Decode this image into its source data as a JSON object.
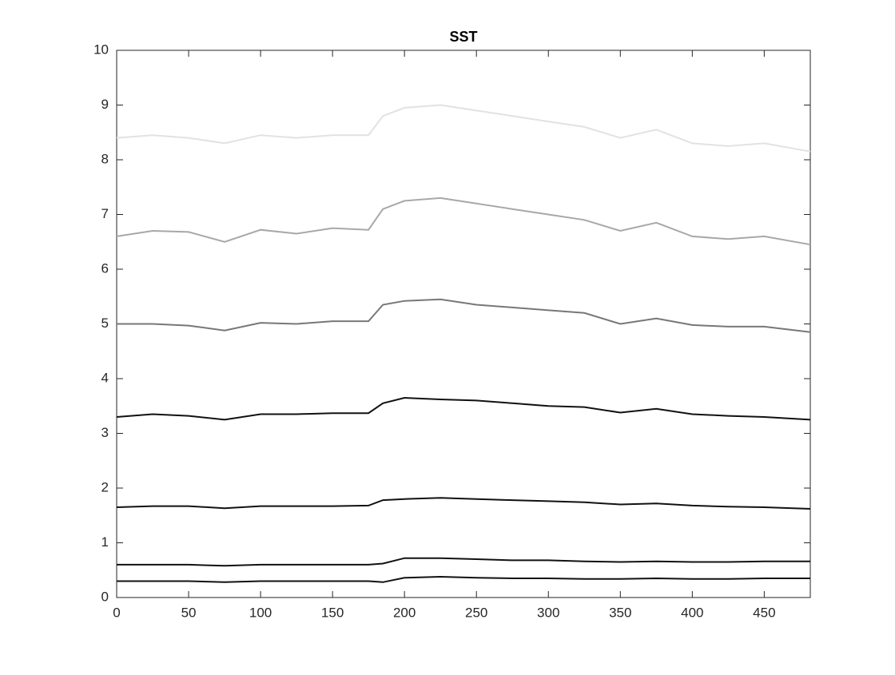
{
  "chart_data": {
    "type": "line",
    "title": "SST",
    "x": [
      0,
      25,
      50,
      75,
      100,
      125,
      150,
      175,
      185,
      200,
      225,
      250,
      275,
      300,
      325,
      350,
      375,
      400,
      425,
      450,
      482
    ],
    "series": [
      {
        "color": "#e2e2e2",
        "values": [
          8.4,
          8.45,
          8.4,
          8.3,
          8.45,
          8.4,
          8.45,
          8.45,
          8.8,
          8.95,
          9.0,
          8.9,
          8.8,
          8.7,
          8.6,
          8.4,
          8.55,
          8.3,
          8.25,
          8.3,
          8.15
        ]
      },
      {
        "color": "#a8a8a8",
        "values": [
          6.6,
          6.7,
          6.68,
          6.5,
          6.72,
          6.65,
          6.75,
          6.72,
          7.1,
          7.25,
          7.3,
          7.2,
          7.1,
          7.0,
          6.9,
          6.7,
          6.85,
          6.6,
          6.55,
          6.6,
          6.45
        ]
      },
      {
        "color": "#777777",
        "values": [
          5.0,
          5.0,
          4.97,
          4.88,
          5.02,
          5.0,
          5.05,
          5.05,
          5.35,
          5.42,
          5.45,
          5.35,
          5.3,
          5.25,
          5.2,
          5.0,
          5.1,
          4.98,
          4.95,
          4.95,
          4.85
        ]
      },
      {
        "color": "#111111",
        "values": [
          3.3,
          3.35,
          3.32,
          3.25,
          3.35,
          3.35,
          3.37,
          3.37,
          3.55,
          3.65,
          3.62,
          3.6,
          3.55,
          3.5,
          3.48,
          3.38,
          3.45,
          3.35,
          3.32,
          3.3,
          3.25
        ]
      },
      {
        "color": "#111111",
        "values": [
          1.65,
          1.67,
          1.67,
          1.63,
          1.67,
          1.67,
          1.67,
          1.68,
          1.78,
          1.8,
          1.82,
          1.8,
          1.78,
          1.76,
          1.74,
          1.7,
          1.72,
          1.68,
          1.66,
          1.65,
          1.62
        ]
      },
      {
        "color": "#111111",
        "values": [
          0.6,
          0.6,
          0.6,
          0.58,
          0.6,
          0.6,
          0.6,
          0.6,
          0.62,
          0.72,
          0.72,
          0.7,
          0.68,
          0.68,
          0.66,
          0.65,
          0.66,
          0.65,
          0.65,
          0.66,
          0.66
        ]
      },
      {
        "color": "#111111",
        "values": [
          0.3,
          0.3,
          0.3,
          0.28,
          0.3,
          0.3,
          0.3,
          0.3,
          0.28,
          0.36,
          0.38,
          0.36,
          0.35,
          0.35,
          0.34,
          0.34,
          0.35,
          0.34,
          0.34,
          0.35,
          0.35
        ]
      }
    ],
    "xlim": [
      0,
      482
    ],
    "ylim": [
      0,
      10
    ],
    "xticks": [
      0,
      50,
      100,
      150,
      200,
      250,
      300,
      350,
      400,
      450
    ],
    "yticks": [
      0,
      1,
      2,
      3,
      4,
      5,
      6,
      7,
      8,
      9,
      10
    ],
    "grid": false
  }
}
